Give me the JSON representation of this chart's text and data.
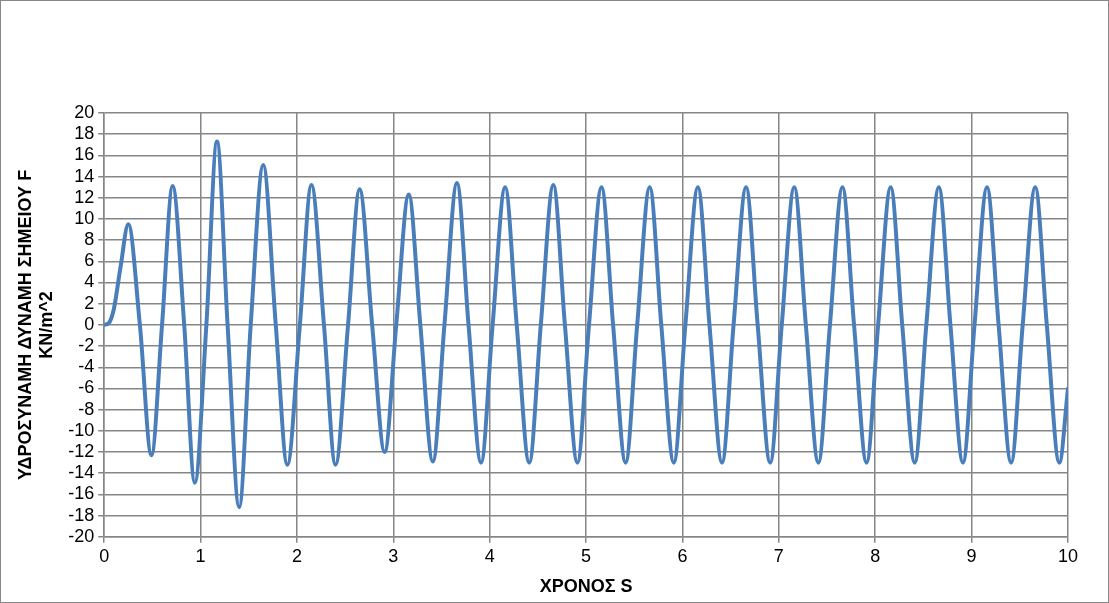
{
  "chart_data": {
    "type": "line",
    "xlabel": "ΧΡΟΝΟΣ S",
    "ylabel": "ΥΔΡΟΣΥΝΑΜΗ ΔΥΝΑΜΗ ΣΗΜΕΙΟΥ F\nKN/m^2",
    "x": [
      0,
      0.05,
      0.1,
      0.17,
      0.25,
      0.37,
      0.49,
      0.6,
      0.71,
      0.83,
      0.94,
      1.06,
      1.17,
      1.28,
      1.4,
      1.52,
      1.65,
      1.78,
      1.9,
      2.03,
      2.15,
      2.28,
      2.4,
      2.53,
      2.65,
      2.78,
      2.91,
      3.03,
      3.16,
      3.28,
      3.41,
      3.53,
      3.66,
      3.78,
      3.91,
      4.03,
      4.16,
      4.28,
      4.41,
      4.53,
      4.66,
      4.78,
      4.91,
      5.03,
      5.16,
      5.28,
      5.41,
      5.53,
      5.66,
      5.78,
      5.91,
      6.03,
      6.16,
      6.28,
      6.41,
      6.53,
      6.66,
      6.78,
      6.91,
      7.03,
      7.16,
      7.28,
      7.41,
      7.53,
      7.66,
      7.78,
      7.91,
      8.03,
      8.16,
      8.28,
      8.41,
      8.53,
      8.66,
      8.78,
      8.91,
      9.03,
      9.16,
      9.28,
      9.41,
      9.53,
      9.66,
      9.78,
      9.91,
      10
    ],
    "series": [
      {
        "color": "#4a7ebb",
        "values": [
          0,
          0.2,
          1.5,
          5.5,
          9.5,
          0,
          -12.3,
          0,
          13.1,
          0,
          -14.9,
          0,
          17.3,
          0,
          -17.2,
          0,
          15.1,
          0,
          -13.2,
          0,
          13.2,
          0,
          -13.2,
          0,
          12.8,
          0,
          -12,
          0,
          12.3,
          0,
          -12.9,
          0,
          13.4,
          0,
          -13,
          0,
          13,
          0,
          -13,
          0,
          13.2,
          0,
          -13,
          0,
          13,
          0,
          -13,
          0,
          13,
          0,
          -13,
          0,
          13,
          0,
          -13,
          0,
          13,
          0,
          -13,
          0,
          13,
          0,
          -13,
          0,
          13,
          0,
          -13,
          0,
          13,
          0,
          -13,
          0,
          13,
          0,
          -13,
          0,
          13,
          0,
          -13,
          0,
          13,
          0,
          -13,
          -6
        ]
      }
    ],
    "xlim": [
      0,
      10
    ],
    "xticks": [
      0,
      1,
      2,
      3,
      4,
      5,
      6,
      7,
      8,
      9,
      10
    ],
    "ylim": [
      -20,
      20
    ],
    "yticks": [
      -20,
      -18,
      -16,
      -14,
      -12,
      -10,
      -8,
      -6,
      -4,
      -2,
      0,
      2,
      4,
      6,
      8,
      10,
      12,
      14,
      16,
      18,
      20
    ],
    "grid": true,
    "legend": false,
    "marker": "none",
    "line_style": "solid"
  }
}
